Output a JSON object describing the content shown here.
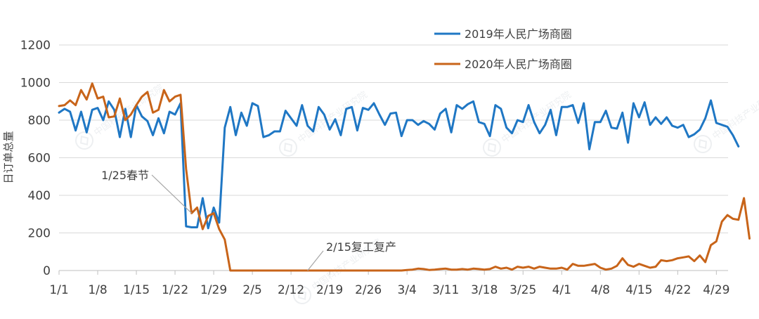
{
  "chart_data": {
    "type": "line",
    "ylabel": "日订单总量",
    "xlabel": "",
    "ylim": [
      0,
      1200
    ],
    "yticks": [
      0,
      200,
      400,
      600,
      800,
      1000,
      1200
    ],
    "grid": "horizontal",
    "legend_position": "top-right",
    "x_tick_labels": [
      "1/1",
      "1/8",
      "1/15",
      "1/22",
      "1/29",
      "2/5",
      "2/12",
      "2/19",
      "2/26",
      "3/4",
      "3/11",
      "3/18",
      "3/25",
      "4/1",
      "4/8",
      "4/15",
      "4/22",
      "4/29"
    ],
    "x_start": "1/1",
    "series": [
      {
        "name": "2019年人民广场商圈",
        "color": "#1F77C4",
        "values": [
          840,
          860,
          845,
          745,
          845,
          735,
          855,
          865,
          800,
          900,
          855,
          710,
          860,
          710,
          880,
          820,
          795,
          720,
          810,
          730,
          845,
          830,
          890,
          235,
          230,
          230,
          385,
          225,
          335,
          255,
          760,
          870,
          720,
          840,
          770,
          890,
          875,
          710,
          720,
          740,
          740,
          850,
          810,
          770,
          880,
          770,
          740,
          870,
          830,
          750,
          805,
          720,
          860,
          870,
          745,
          865,
          855,
          890,
          830,
          775,
          835,
          840,
          715,
          800,
          800,
          775,
          795,
          780,
          750,
          835,
          860,
          735,
          880,
          860,
          885,
          900,
          790,
          780,
          715,
          880,
          860,
          760,
          730,
          800,
          790,
          880,
          790,
          730,
          775,
          855,
          720,
          870,
          870,
          880,
          785,
          890,
          645,
          790,
          790,
          850,
          760,
          755,
          840,
          680,
          890,
          815,
          895,
          775,
          815,
          780,
          815,
          770,
          760,
          775,
          710,
          725,
          750,
          810,
          905,
          785,
          775,
          765,
          720,
          660
        ]
      },
      {
        "name": "2020年人民广场商圈",
        "color": "#C86419",
        "values": [
          875,
          880,
          905,
          880,
          960,
          910,
          995,
          915,
          925,
          815,
          820,
          915,
          800,
          830,
          880,
          925,
          950,
          840,
          855,
          960,
          900,
          925,
          935,
          540,
          305,
          335,
          220,
          290,
          305,
          220,
          165,
          0,
          0,
          0,
          0,
          0,
          0,
          0,
          0,
          0,
          0,
          0,
          0,
          0,
          0,
          0,
          0,
          0,
          0,
          0,
          0,
          0,
          0,
          0,
          0,
          0,
          0,
          0,
          0,
          0,
          0,
          0,
          0,
          3,
          5,
          10,
          8,
          3,
          5,
          8,
          10,
          5,
          5,
          8,
          5,
          10,
          8,
          5,
          8,
          20,
          10,
          15,
          5,
          20,
          15,
          20,
          10,
          20,
          15,
          10,
          10,
          15,
          5,
          35,
          25,
          25,
          30,
          35,
          15,
          5,
          10,
          25,
          65,
          30,
          20,
          35,
          25,
          15,
          20,
          55,
          50,
          55,
          65,
          70,
          75,
          50,
          80,
          45,
          135,
          155,
          260,
          295,
          275,
          270,
          385,
          170
        ]
      }
    ],
    "annotations": [
      {
        "text": "1/25春节",
        "x": "1/25"
      },
      {
        "text": "2/15复工复产",
        "x": "2/15"
      }
    ]
  },
  "watermark": "中国科技产业研究院"
}
